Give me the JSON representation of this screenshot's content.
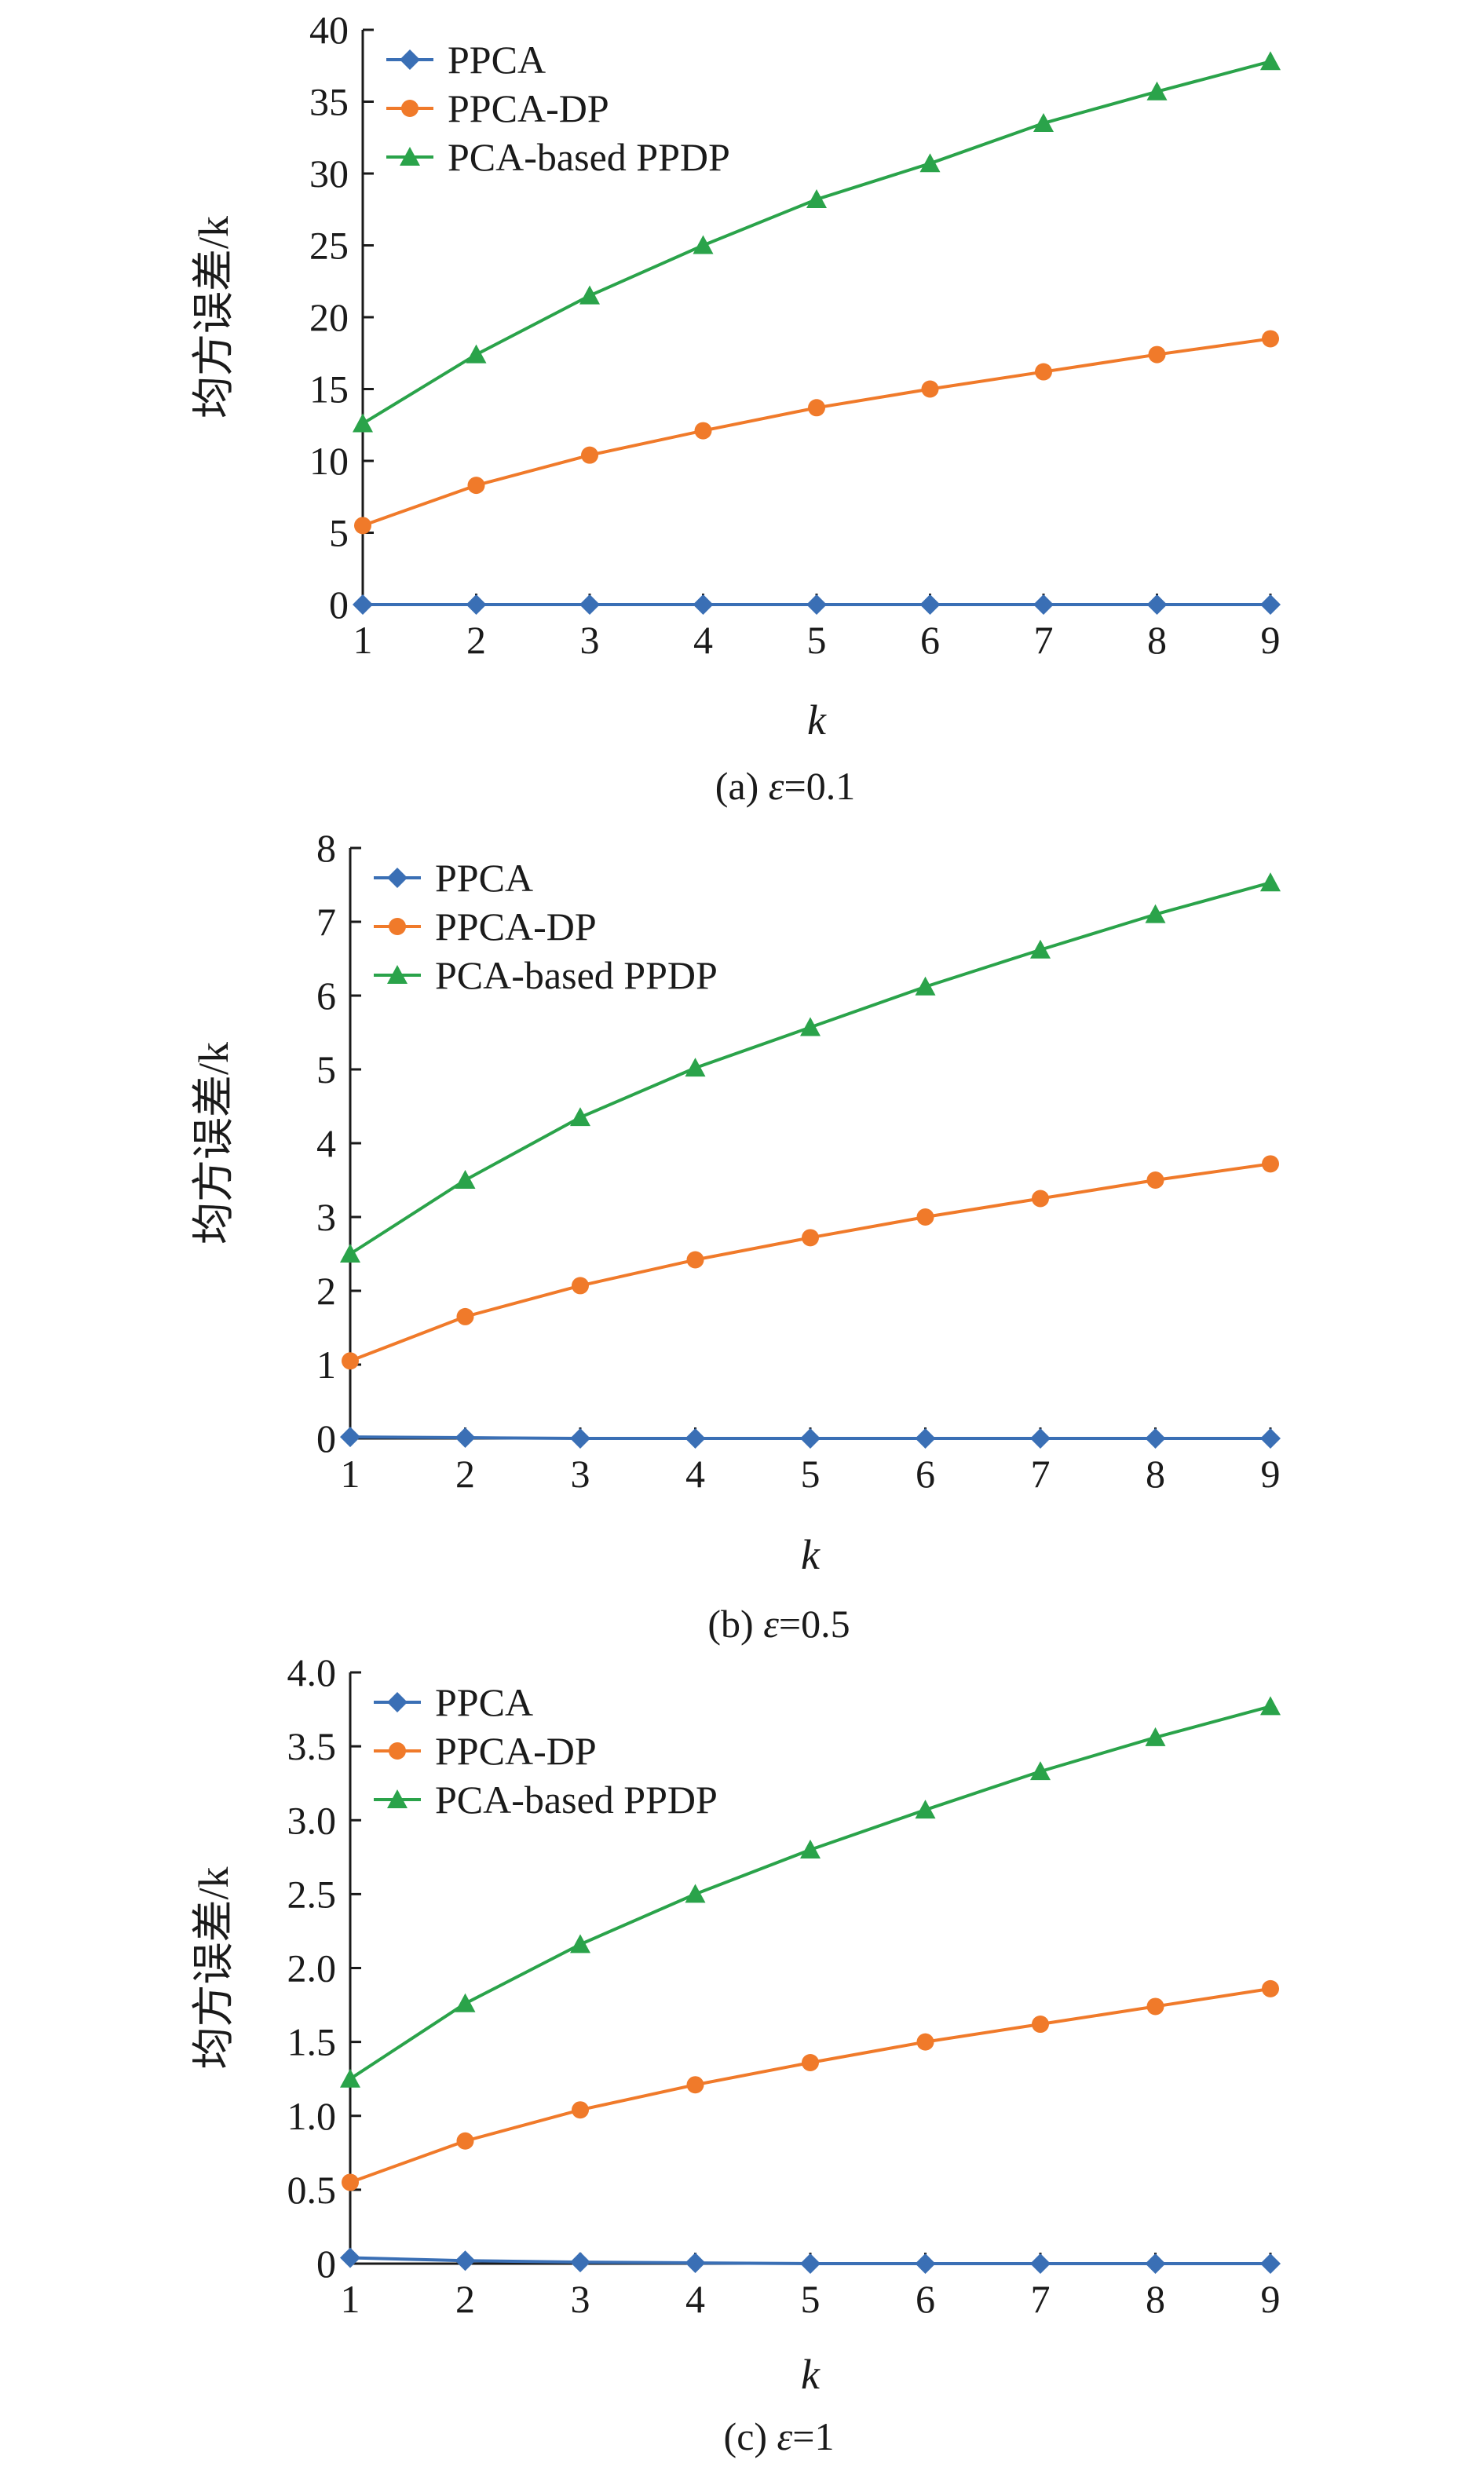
{
  "colors": {
    "PPCA": "#3a6fb5",
    "PPCA-DP": "#f07a2a",
    "PCA-based PPDP": "#2aa34a",
    "axis": "#1a1a1a"
  },
  "chart_data": [
    {
      "type": "line",
      "caption": {
        "prefix": "(a) ",
        "symbol": "ε",
        "value": "=0.1"
      },
      "xlabel": "k",
      "ylabel": "均方误差/k",
      "x": [
        1,
        2,
        3,
        4,
        5,
        6,
        7,
        8,
        9
      ],
      "xlim": [
        1,
        9
      ],
      "ylim": [
        0,
        40
      ],
      "yticks": [
        0,
        5,
        10,
        15,
        20,
        25,
        30,
        35,
        40
      ],
      "ytick_labels": [
        "0",
        "5",
        "10",
        "15",
        "20",
        "25",
        "30",
        "35",
        "40"
      ],
      "legend": "top-left",
      "series": [
        {
          "name": "PPCA",
          "marker": "diamond",
          "values": [
            0,
            0,
            0,
            0,
            0,
            0,
            0,
            0,
            0
          ]
        },
        {
          "name": "PPCA-DP",
          "marker": "circle",
          "values": [
            5.5,
            8.3,
            10.4,
            12.1,
            13.7,
            15.0,
            16.2,
            17.4,
            18.5
          ]
        },
        {
          "name": "PCA-based PPDP",
          "marker": "triangle",
          "values": [
            12.6,
            17.4,
            21.5,
            25.0,
            28.2,
            30.7,
            33.5,
            35.7,
            37.8
          ]
        }
      ]
    },
    {
      "type": "line",
      "caption": {
        "prefix": "(b) ",
        "symbol": "ε",
        "value": "=0.5"
      },
      "xlabel": "k",
      "ylabel": "均方误差/k",
      "x": [
        1,
        2,
        3,
        4,
        5,
        6,
        7,
        8,
        9
      ],
      "xlim": [
        1,
        9
      ],
      "ylim": [
        0,
        8
      ],
      "yticks": [
        0,
        1,
        2,
        3,
        4,
        5,
        6,
        7,
        8
      ],
      "ytick_labels": [
        "0",
        "1",
        "2",
        "3",
        "4",
        "5",
        "6",
        "7",
        "8"
      ],
      "legend": "top-left",
      "series": [
        {
          "name": "PPCA",
          "marker": "diamond",
          "values": [
            0.02,
            0.01,
            0,
            0,
            0,
            0,
            0,
            0,
            0
          ]
        },
        {
          "name": "PPCA-DP",
          "marker": "circle",
          "values": [
            1.05,
            1.65,
            2.07,
            2.42,
            2.72,
            3.0,
            3.25,
            3.5,
            3.72
          ]
        },
        {
          "name": "PCA-based PPDP",
          "marker": "triangle",
          "values": [
            2.5,
            3.5,
            4.35,
            5.02,
            5.57,
            6.12,
            6.62,
            7.1,
            7.53
          ]
        }
      ]
    },
    {
      "type": "line",
      "caption": {
        "prefix": "(c) ",
        "symbol": "ε",
        "value": "=1"
      },
      "xlabel": "k",
      "ylabel": "均方误差/k",
      "x": [
        1,
        2,
        3,
        4,
        5,
        6,
        7,
        8,
        9
      ],
      "xlim": [
        1,
        9
      ],
      "ylim": [
        0,
        4
      ],
      "yticks": [
        0,
        0.5,
        1,
        1.5,
        2,
        2.5,
        3,
        3.5,
        4
      ],
      "ytick_labels": [
        "0",
        "0.5",
        "1.0",
        "1.5",
        "2.0",
        "2.5",
        "3.0",
        "3.5",
        "4.0"
      ],
      "legend": "top-left",
      "series": [
        {
          "name": "PPCA",
          "marker": "diamond",
          "values": [
            0.04,
            0.02,
            0.01,
            0.005,
            0,
            0,
            0,
            0,
            0
          ]
        },
        {
          "name": "PPCA-DP",
          "marker": "circle",
          "values": [
            0.55,
            0.83,
            1.04,
            1.21,
            1.36,
            1.5,
            1.62,
            1.74,
            1.86
          ]
        },
        {
          "name": "PCA-based PPDP",
          "marker": "triangle",
          "values": [
            1.25,
            1.76,
            2.16,
            2.5,
            2.8,
            3.07,
            3.33,
            3.56,
            3.77
          ]
        }
      ]
    }
  ]
}
